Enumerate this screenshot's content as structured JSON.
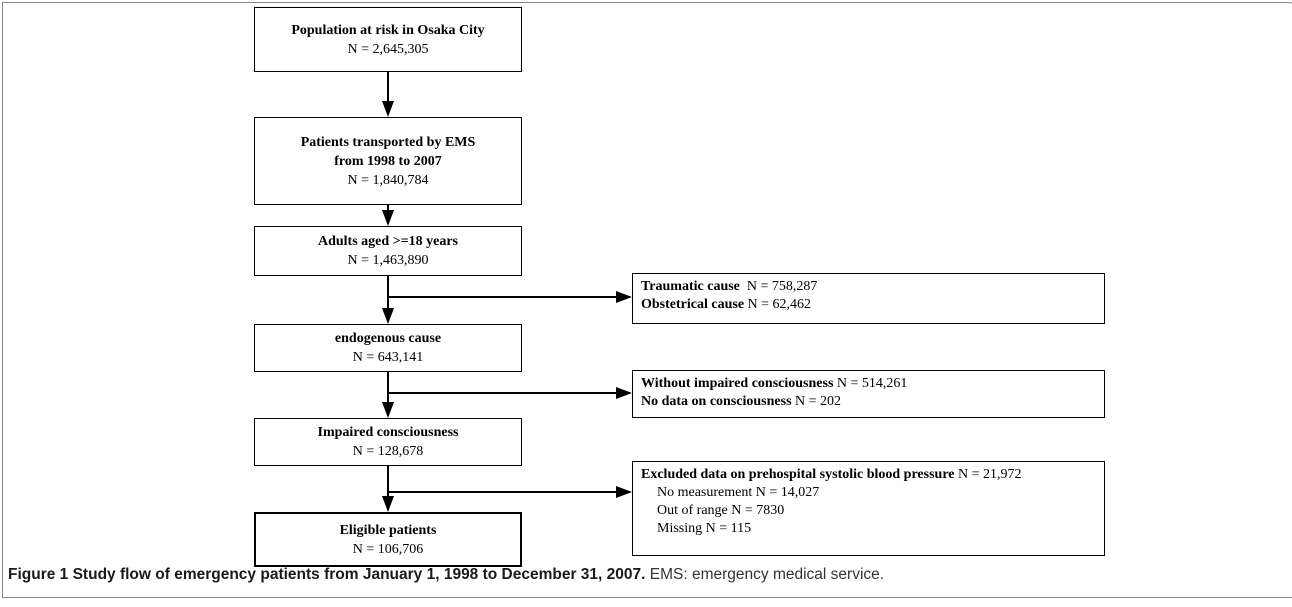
{
  "nodes": [
    {
      "title": [
        "Population at risk in Osaka City"
      ],
      "n": "N = 2,645,305"
    },
    {
      "title": [
        "Patients transported by EMS",
        "from 1998 to 2007"
      ],
      "n": "N = 1,840,784"
    },
    {
      "title": [
        "Adults aged >=18 years"
      ],
      "n": "N = 1,463,890"
    },
    {
      "title": [
        "endogenous cause"
      ],
      "n": "N = 643,141"
    },
    {
      "title": [
        "Impaired consciousness"
      ],
      "n": "N = 128,678"
    },
    {
      "title": [
        "Eligible patients"
      ],
      "n": "N = 106,706"
    }
  ],
  "exclusions": [
    {
      "items": [
        {
          "label": "Traumatic cause",
          "n": "N = 758,287"
        },
        {
          "label": "Obstetrical cause",
          "n": "N = 62,462"
        }
      ]
    },
    {
      "items": [
        {
          "label": "Without impaired consciousness",
          "n": "N = 514,261"
        },
        {
          "label": "No data on consciousness",
          "n": "N = 202"
        }
      ]
    },
    {
      "items": [
        {
          "label": "Excluded data on prehospital systolic blood pressure",
          "n": "N = 21,972"
        }
      ],
      "details": [
        "No measurement N = 14,027",
        "Out of range N = 7830",
        "Missing N = 115"
      ]
    }
  ],
  "caption": {
    "title": "Figure 1 Study flow of emergency patients from January 1, 1998 to December 31, 2007.",
    "text": "EMS: emergency medical service."
  }
}
